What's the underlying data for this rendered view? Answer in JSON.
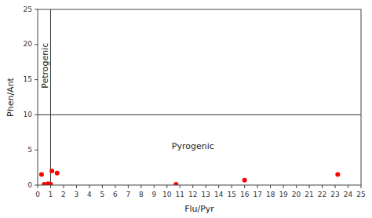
{
  "chart_data": {
    "type": "scatter",
    "xlabel": "Flu/Pyr",
    "ylabel": "Phen/Ant",
    "xlim": [
      0,
      25
    ],
    "ylim": [
      0,
      25
    ],
    "xticks": [
      0,
      1,
      2,
      3,
      4,
      5,
      6,
      7,
      8,
      9,
      10,
      11,
      12,
      13,
      14,
      15,
      16,
      17,
      18,
      19,
      20,
      21,
      22,
      23,
      24,
      25
    ],
    "yticks": [
      0,
      5,
      10,
      15,
      20,
      25
    ],
    "x": [
      0.3,
      0.5,
      0.8,
      1.0,
      1.1,
      1.5,
      10.7,
      16.0,
      23.2
    ],
    "values": [
      1.5,
      0.1,
      0.2,
      0.1,
      2.0,
      1.7,
      0.1,
      0.7,
      1.5
    ],
    "color": "#ff0000",
    "vlines": [
      1.0
    ],
    "hlines": [
      10.0
    ],
    "annotations": [
      {
        "text": "Petrogenic",
        "x": 0.6,
        "y": 17
      },
      {
        "text": "Pyrogenic",
        "x": 12,
        "y": 5.5
      }
    ]
  }
}
